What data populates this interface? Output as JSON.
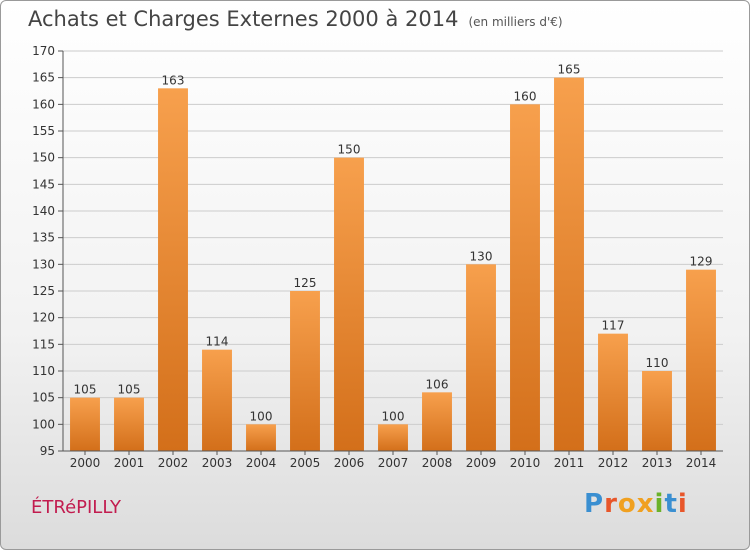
{
  "title": "Achats et Charges Externes 2000 à 2014",
  "unit_note": "(en milliers d'€)",
  "commune": "ÉTRéPILLY",
  "logo": {
    "text": "Proxiti",
    "letter_colors": [
      "#3a8fd1",
      "#e8562a",
      "#f0a020",
      "#f0a020",
      "#6bb22a",
      "#3a8fd1",
      "#e8562a"
    ]
  },
  "colors": {
    "bar_top": "#f7a04d",
    "bar_bottom": "#d36f1a",
    "grid": "#cccccc",
    "axis_text": "#333333"
  },
  "chart_data": {
    "type": "bar",
    "title": "Achats et Charges Externes 2000 à 2014",
    "categories": [
      "2000",
      "2001",
      "2002",
      "2003",
      "2004",
      "2005",
      "2006",
      "2007",
      "2008",
      "2009",
      "2010",
      "2011",
      "2012",
      "2013",
      "2014"
    ],
    "values": [
      105,
      105,
      163,
      114,
      100,
      125,
      150,
      100,
      106,
      130,
      160,
      165,
      117,
      110,
      129
    ],
    "ylim": [
      95,
      170
    ],
    "yticks": [
      95,
      100,
      105,
      110,
      115,
      120,
      125,
      130,
      135,
      140,
      145,
      150,
      155,
      160,
      165,
      170
    ],
    "grid": true,
    "data_labels": true
  }
}
